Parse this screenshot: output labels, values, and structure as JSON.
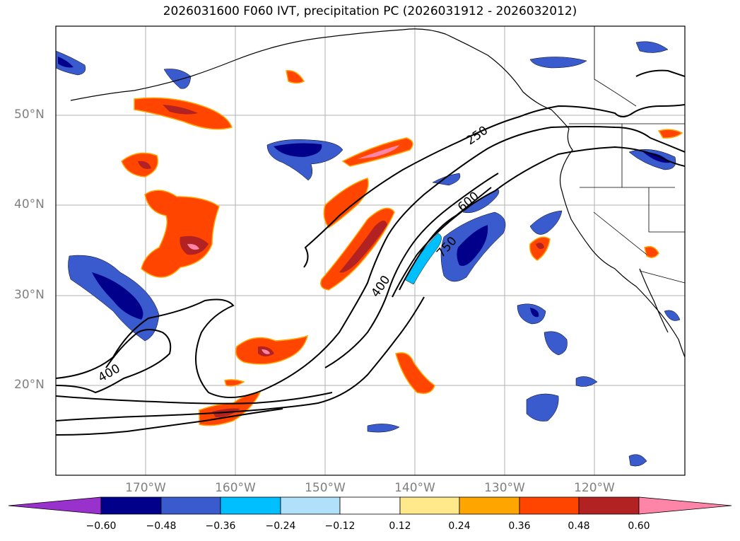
{
  "title": "2026031600 F060 IVT, precipitation PC (2026031912 - 2026032012)",
  "map": {
    "lat_labels": [
      "50°N",
      "40°N",
      "30°N",
      "20°N"
    ],
    "lon_labels": [
      "170°W",
      "160°W",
      "150°W",
      "140°W",
      "130°W",
      "120°W"
    ],
    "contour_labels": [
      "250",
      "600",
      "750",
      "400",
      "400"
    ]
  },
  "colorbar": {
    "ticks": [
      "−0.60",
      "−0.48",
      "−0.36",
      "−0.24",
      "−0.12",
      "0.12",
      "0.24",
      "0.36",
      "0.48",
      "0.60"
    ],
    "colors": [
      "#9932cc",
      "#00008b",
      "#3a5bcd",
      "#00bfff",
      "#b0e0fa",
      "#ffffff",
      "#ffe98a",
      "#ffa500",
      "#ff4500",
      "#b22222",
      "#ff85a8"
    ]
  },
  "colors": {
    "red_orange": "#ff4500",
    "dark_red": "#b22222",
    "pink": "#ff85a8",
    "navy": "#00008b",
    "blue": "#3a5bcd",
    "sky": "#00bfff",
    "yellow": "#ffe98a",
    "orange": "#ffa500",
    "grid": "#b0b0b0",
    "coast": "#000000"
  }
}
